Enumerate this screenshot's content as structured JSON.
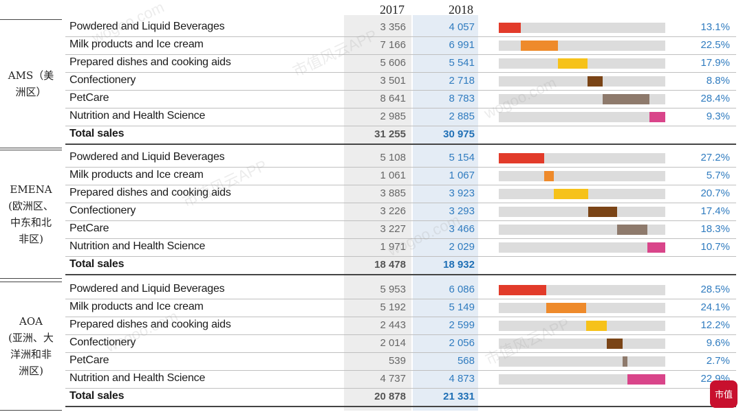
{
  "years": [
    "2017",
    "2018"
  ],
  "colors": {
    "powdered": "#e23b2a",
    "milk": "#ee8a2b",
    "prepared": "#f6c21a",
    "confectionery": "#7a4416",
    "petcare": "#8e7a6c",
    "nutrition": "#d9458a"
  },
  "regions": [
    {
      "label": "AMS（美\n洲区）",
      "rows": [
        {
          "cat": "Powdered and Liquid Beverages",
          "v2017": "3 356",
          "v2018": "4 057",
          "pct": "13.1%",
          "share": 13.1,
          "offset": 0,
          "color": "powdered"
        },
        {
          "cat": "Milk products and Ice cream",
          "v2017": "7 166",
          "v2018": "6 991",
          "pct": "22.5%",
          "share": 22.5,
          "offset": 13.1,
          "color": "milk"
        },
        {
          "cat": "Prepared dishes and cooking aids",
          "v2017": "5 606",
          "v2018": "5 541",
          "pct": "17.9%",
          "share": 17.9,
          "offset": 35.6,
          "color": "prepared"
        },
        {
          "cat": "Confectionery",
          "v2017": "3 501",
          "v2018": "2 718",
          "pct": "8.8%",
          "share": 8.8,
          "offset": 53.5,
          "color": "confectionery"
        },
        {
          "cat": "PetCare",
          "v2017": "8 641",
          "v2018": "8 783",
          "pct": "28.4%",
          "share": 28.4,
          "offset": 62.3,
          "color": "petcare"
        },
        {
          "cat": "Nutrition and Health Science",
          "v2017": "2 985",
          "v2018": "2 885",
          "pct": "9.3%",
          "share": 9.3,
          "offset": 90.7,
          "color": "nutrition"
        }
      ],
      "total": {
        "cat": "Total sales",
        "v2017": "31 255",
        "v2018": "30 975"
      }
    },
    {
      "label": "EMENA\n(欧洲区、\n中东和北\n非区)",
      "rows": [
        {
          "cat": "Powdered and Liquid Beverages",
          "v2017": "5 108",
          "v2018": "5 154",
          "pct": "27.2%",
          "share": 27.2,
          "offset": 0,
          "color": "powdered"
        },
        {
          "cat": "Milk products and Ice cream",
          "v2017": "1 061",
          "v2018": "1 067",
          "pct": "5.7%",
          "share": 5.7,
          "offset": 27.2,
          "color": "milk"
        },
        {
          "cat": "Prepared dishes and cooking aids",
          "v2017": "3 885",
          "v2018": "3 923",
          "pct": "20.7%",
          "share": 20.7,
          "offset": 32.9,
          "color": "prepared"
        },
        {
          "cat": "Confectionery",
          "v2017": "3 226",
          "v2018": "3 293",
          "pct": "17.4%",
          "share": 17.4,
          "offset": 53.6,
          "color": "confectionery"
        },
        {
          "cat": "PetCare",
          "v2017": "3 227",
          "v2018": "3 466",
          "pct": "18.3%",
          "share": 18.3,
          "offset": 71.0,
          "color": "petcare"
        },
        {
          "cat": "Nutrition and Health Science",
          "v2017": "1 971",
          "v2018": "2 029",
          "pct": "10.7%",
          "share": 10.7,
          "offset": 89.3,
          "color": "nutrition"
        }
      ],
      "total": {
        "cat": "Total sales",
        "v2017": "18 478",
        "v2018": "18 932"
      }
    },
    {
      "label": "AOA\n(亚洲、大\n洋洲和非\n洲区)",
      "rows": [
        {
          "cat": "Powdered and Liquid Beverages",
          "v2017": "5 953",
          "v2018": "6 086",
          "pct": "28.5%",
          "share": 28.5,
          "offset": 0,
          "color": "powdered"
        },
        {
          "cat": "Milk products and Ice cream",
          "v2017": "5 192",
          "v2018": "5 149",
          "pct": "24.1%",
          "share": 24.1,
          "offset": 28.5,
          "color": "milk"
        },
        {
          "cat": "Prepared dishes and cooking aids",
          "v2017": "2 443",
          "v2018": "2 599",
          "pct": "12.2%",
          "share": 12.2,
          "offset": 52.6,
          "color": "prepared"
        },
        {
          "cat": "Confectionery",
          "v2017": "2 014",
          "v2018": "2 056",
          "pct": "9.6%",
          "share": 9.6,
          "offset": 64.8,
          "color": "confectionery"
        },
        {
          "cat": "PetCare",
          "v2017": "539",
          "v2018": "568",
          "pct": "2.7%",
          "share": 2.7,
          "offset": 74.4,
          "color": "petcare"
        },
        {
          "cat": "Nutrition and Health Science",
          "v2017": "4 737",
          "v2018": "4 873",
          "pct": "22.9%",
          "share": 22.9,
          "offset": 77.1,
          "color": "nutrition"
        }
      ],
      "total": {
        "cat": "Total sales",
        "v2017": "20 878",
        "v2018": "21 331"
      }
    }
  ],
  "logo_text": "市值"
}
